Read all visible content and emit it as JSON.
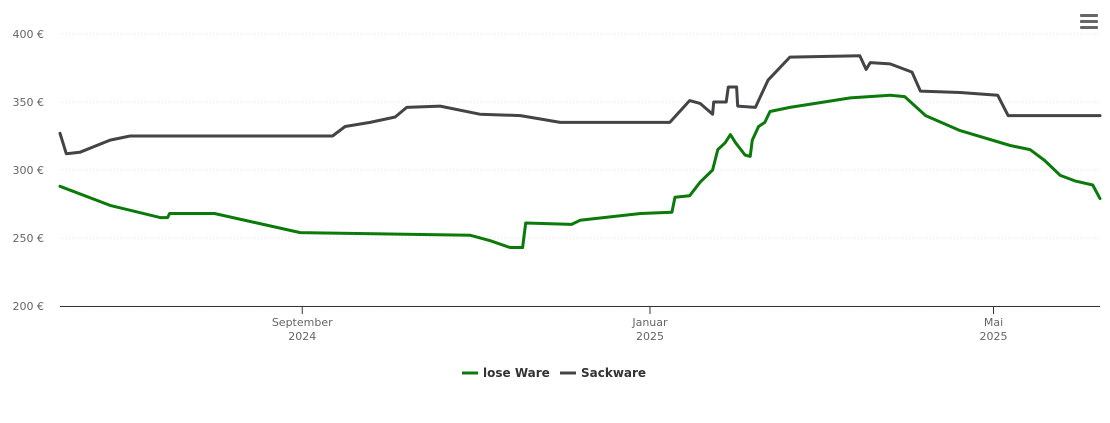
{
  "chart_data": {
    "type": "line",
    "xlim": [
      2024.435,
      2025.431
    ],
    "xticks": [
      {
        "value": 2024.667,
        "label": "September 2024"
      },
      {
        "value": 2025.0,
        "label": "Januar 2025"
      },
      {
        "value": 2025.329,
        "label": "Mai 2025"
      }
    ],
    "ylim": [
      200,
      400
    ],
    "yticks": [
      {
        "value": 200,
        "label": "200 €"
      },
      {
        "value": 250,
        "label": "250 €"
      },
      {
        "value": 300,
        "label": "300 €"
      },
      {
        "value": 350,
        "label": "350 €"
      },
      {
        "value": 400,
        "label": "400 €"
      }
    ],
    "grid": true,
    "legend": "bottom",
    "series": [
      {
        "name": "lose Ware",
        "color": "#0a7a0a",
        "x": [
          2024.435,
          2024.483,
          2024.531,
          2024.538,
          2024.54,
          2024.583,
          2024.665,
          2024.828,
          2024.847,
          2024.866,
          2024.878,
          2024.881,
          2024.925,
          2024.933,
          2024.991,
          2025.021,
          2025.024,
          2025.038,
          2025.048,
          2025.06,
          2025.065,
          2025.072,
          2025.077,
          2025.082,
          2025.091,
          2025.096,
          2025.098,
          2025.104,
          2025.11,
          2025.115,
          2025.134,
          2025.192,
          2025.23,
          2025.244,
          2025.264,
          2025.297,
          2025.345,
          2025.364,
          2025.378,
          2025.393,
          2025.407,
          2025.424,
          2025.431
        ],
        "values": [
          288,
          274,
          265,
          265,
          268,
          268,
          254,
          252,
          248,
          243,
          243,
          261,
          260,
          263,
          268,
          269,
          280,
          281,
          291,
          300,
          315,
          320,
          326,
          320,
          311,
          310,
          322,
          332,
          335,
          343,
          346,
          353,
          355,
          354,
          340,
          329,
          318,
          315,
          307,
          296,
          292,
          289,
          279
        ]
      },
      {
        "name": "Sackware",
        "color": "#434348",
        "x": [
          2024.435,
          2024.441,
          2024.454,
          2024.483,
          2024.502,
          2024.696,
          2024.708,
          2024.732,
          2024.756,
          2024.767,
          2024.799,
          2024.837,
          2024.876,
          2024.914,
          2025.019,
          2025.038,
          2025.048,
          2025.06,
          2025.061,
          2025.073,
          2025.075,
          2025.083,
          2025.084,
          2025.101,
          2025.113,
          2025.134,
          2025.201,
          2025.207,
          2025.211,
          2025.23,
          2025.251,
          2025.259,
          2025.297,
          2025.333,
          2025.343,
          2025.431
        ],
        "values": [
          327,
          312,
          313,
          322,
          325,
          325,
          332,
          335,
          339,
          346,
          347,
          341,
          340,
          335,
          335,
          351,
          349,
          341,
          350,
          350,
          361,
          361,
          347,
          346,
          366,
          383,
          384,
          374,
          379,
          378,
          372,
          358,
          357,
          355,
          340,
          340
        ]
      }
    ]
  }
}
